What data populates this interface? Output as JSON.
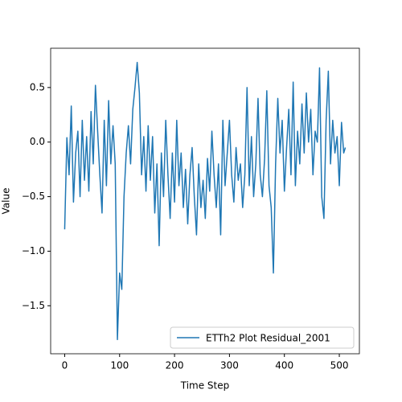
{
  "chart_data": {
    "type": "line",
    "xlabel": "Time Step",
    "ylabel": "Value",
    "x": [
      0,
      4,
      8,
      12,
      16,
      20,
      24,
      28,
      32,
      36,
      40,
      44,
      48,
      52,
      56,
      60,
      64,
      68,
      72,
      76,
      80,
      84,
      88,
      92,
      96,
      100,
      104,
      108,
      112,
      116,
      120,
      124,
      128,
      132,
      136,
      140,
      144,
      148,
      152,
      156,
      160,
      164,
      168,
      172,
      176,
      180,
      184,
      188,
      192,
      196,
      200,
      204,
      208,
      212,
      216,
      220,
      224,
      228,
      232,
      236,
      240,
      244,
      248,
      252,
      256,
      260,
      264,
      268,
      272,
      276,
      280,
      284,
      288,
      292,
      296,
      300,
      304,
      308,
      312,
      316,
      320,
      324,
      328,
      332,
      336,
      340,
      344,
      348,
      352,
      356,
      360,
      364,
      368,
      372,
      376,
      380,
      384,
      388,
      392,
      396,
      400,
      404,
      408,
      412,
      416,
      420,
      424,
      428,
      432,
      436,
      440,
      444,
      448,
      452,
      456,
      460,
      464,
      468,
      472,
      476,
      480,
      484,
      488,
      492,
      496,
      500,
      504,
      508,
      511
    ],
    "series": [
      {
        "name": "ETTh2 Plot Residual_2001",
        "color": "#1f77b4",
        "values": [
          -0.8,
          0.04,
          -0.3,
          0.33,
          -0.55,
          -0.1,
          0.1,
          -0.5,
          0.2,
          -0.35,
          0.05,
          -0.45,
          0.28,
          -0.2,
          0.52,
          0.1,
          -0.3,
          -0.65,
          0.2,
          -0.4,
          0.38,
          -0.2,
          0.15,
          -0.2,
          -1.81,
          -1.2,
          -1.35,
          -0.5,
          -0.1,
          0.15,
          -0.2,
          0.3,
          0.5,
          0.73,
          0.45,
          -0.3,
          0.05,
          -0.45,
          0.15,
          -0.35,
          0.05,
          -0.65,
          -0.2,
          -0.95,
          -0.1,
          -0.5,
          0.2,
          -0.3,
          -0.7,
          -0.1,
          -0.55,
          0.2,
          -0.4,
          -0.1,
          -0.6,
          -0.25,
          -0.75,
          -0.3,
          -0.05,
          -0.5,
          -0.85,
          -0.2,
          -0.6,
          -0.35,
          -0.7,
          -0.15,
          -0.45,
          0.1,
          -0.3,
          -0.6,
          -0.2,
          -0.85,
          0.2,
          -0.4,
          -0.1,
          0.2,
          -0.3,
          -0.55,
          -0.05,
          -0.35,
          -0.2,
          -0.6,
          -0.3,
          0.5,
          -0.4,
          0.05,
          -0.5,
          -0.2,
          0.4,
          -0.3,
          -0.5,
          -0.15,
          0.47,
          -0.4,
          -0.6,
          -1.2,
          -0.2,
          0.4,
          -0.1,
          0.2,
          -0.45,
          -0.05,
          0.3,
          -0.3,
          0.55,
          -0.4,
          0.1,
          -0.2,
          0.35,
          -0.1,
          0.45,
          0.0,
          0.3,
          -0.3,
          0.1,
          0.0,
          0.68,
          -0.5,
          -0.7,
          0.2,
          0.65,
          -0.2,
          0.2,
          -0.1,
          0.05,
          -0.4,
          0.18,
          -0.1,
          -0.05
        ]
      }
    ],
    "xlim": [
      -25.55,
      536.55
    ],
    "xticks": [
      0,
      100,
      200,
      300,
      400,
      500
    ],
    "ylim": [
      -1.94,
      0.86
    ],
    "yticks": [
      {
        "value": -1.5,
        "label": "−1.5"
      },
      {
        "value": -1.0,
        "label": "−1.0"
      },
      {
        "value": -0.5,
        "label": "−0.5"
      },
      {
        "value": 0,
        "label": "0.0"
      },
      0.5
    ],
    "legend": "lower right"
  }
}
